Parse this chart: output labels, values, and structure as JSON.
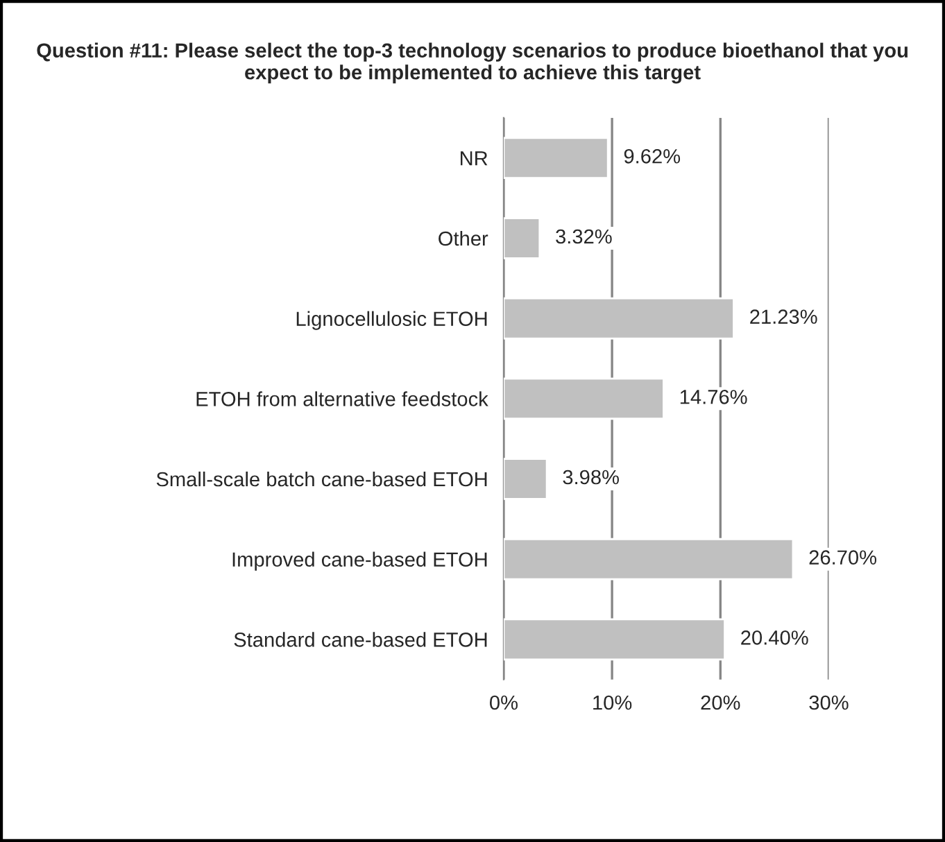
{
  "chart_data": {
    "type": "bar",
    "orientation": "horizontal",
    "title": "Question #11: Please select the top-3 technology scenarios to produce bioethanol that you expect to be implemented to achieve this target",
    "categories": [
      "NR",
      "Other",
      "Lignocellulosic ETOH",
      "ETOH from alternative feedstock",
      "Small-scale batch cane-based ETOH",
      "Improved cane-based ETOH",
      "Standard cane-based ETOH"
    ],
    "values": [
      9.62,
      3.32,
      21.23,
      14.76,
      3.98,
      26.7,
      20.4
    ],
    "value_labels": [
      "9.62%",
      "3.32%",
      "21.23%",
      "14.76%",
      "3.98%",
      "26.70%",
      "20.40%"
    ],
    "color": "#c0c0c0",
    "xlim": [
      0,
      30
    ],
    "xticks": [
      {
        "value": 0,
        "label": "0%"
      },
      {
        "value": 10,
        "label": "10%"
      },
      {
        "value": 20,
        "label": "20%"
      },
      {
        "value": 30,
        "label": "30%"
      }
    ],
    "grid": "x",
    "legend": false
  }
}
